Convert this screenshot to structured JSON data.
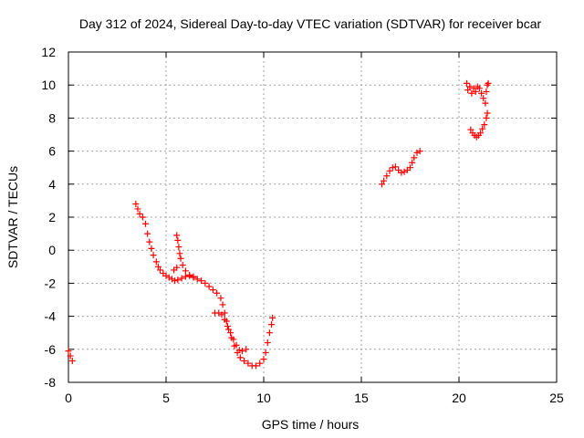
{
  "chart_data": {
    "type": "scatter",
    "title": "Day 312 of 2024, Sidereal Day-to-day VTEC variation (SDTVAR) for receiver bcar",
    "xlabel": "GPS time / hours",
    "ylabel": "SDTVAR / TECUs",
    "xlim": [
      0,
      25
    ],
    "ylim": [
      -8,
      12
    ],
    "xticks": [
      0,
      5,
      10,
      15,
      20,
      25
    ],
    "yticks": [
      -8,
      -6,
      -4,
      -2,
      0,
      2,
      4,
      6,
      8,
      10,
      12
    ],
    "grid": true,
    "marker": "+",
    "color": "#ff0000",
    "series": [
      {
        "name": "SDTVAR",
        "segments": [
          [
            [
              0.0,
              -6.1
            ],
            [
              0.1,
              -6.4
            ],
            [
              0.2,
              -6.7
            ]
          ],
          [
            [
              3.45,
              2.8
            ],
            [
              3.55,
              2.5
            ],
            [
              3.65,
              2.2
            ],
            [
              3.8,
              2.0
            ],
            [
              3.95,
              1.6
            ],
            [
              4.05,
              1.0
            ],
            [
              4.15,
              0.5
            ],
            [
              4.25,
              0.1
            ],
            [
              4.35,
              -0.3
            ],
            [
              4.5,
              -0.7
            ],
            [
              4.6,
              -1.0
            ],
            [
              4.7,
              -1.2
            ],
            [
              4.85,
              -1.4
            ],
            [
              5.0,
              -1.55
            ],
            [
              5.15,
              -1.65
            ],
            [
              5.3,
              -1.75
            ],
            [
              5.45,
              -1.85
            ],
            [
              5.6,
              -1.8
            ],
            [
              5.8,
              -1.7
            ],
            [
              6.0,
              -1.6
            ],
            [
              6.2,
              -1.55
            ],
            [
              6.4,
              -1.65
            ],
            [
              6.6,
              -1.75
            ],
            [
              6.8,
              -1.85
            ],
            [
              7.0,
              -2.0
            ],
            [
              7.2,
              -2.2
            ],
            [
              7.4,
              -2.4
            ],
            [
              7.6,
              -2.6
            ],
            [
              7.8,
              -2.9
            ],
            [
              7.9,
              -3.3
            ],
            [
              8.0,
              -3.8
            ],
            [
              8.1,
              -4.3
            ],
            [
              8.2,
              -4.8
            ],
            [
              8.35,
              -5.3
            ],
            [
              8.5,
              -5.8
            ],
            [
              8.65,
              -6.2
            ],
            [
              8.8,
              -6.5
            ],
            [
              9.0,
              -6.7
            ],
            [
              9.2,
              -6.85
            ],
            [
              9.4,
              -7.0
            ],
            [
              9.6,
              -7.0
            ],
            [
              9.8,
              -6.85
            ],
            [
              10.0,
              -6.6
            ],
            [
              10.1,
              -6.2
            ],
            [
              10.2,
              -5.6
            ],
            [
              10.3,
              -5.0
            ],
            [
              10.4,
              -4.5
            ],
            [
              10.45,
              -4.1
            ]
          ],
          [
            [
              5.55,
              0.9
            ],
            [
              5.6,
              0.6
            ],
            [
              5.65,
              0.2
            ],
            [
              5.7,
              -0.2
            ],
            [
              5.75,
              -0.5
            ],
            [
              5.85,
              -0.9
            ],
            [
              6.0,
              -1.25
            ],
            [
              6.2,
              -1.5
            ],
            [
              6.4,
              -1.6
            ]
          ],
          [
            [
              5.4,
              -1.2
            ],
            [
              5.55,
              -1.05
            ]
          ],
          [
            [
              7.5,
              -3.8
            ],
            [
              7.7,
              -3.8
            ],
            [
              7.85,
              -3.9
            ],
            [
              8.0,
              -4.2
            ],
            [
              8.15,
              -4.6
            ],
            [
              8.3,
              -5.0
            ],
            [
              8.45,
              -5.4
            ],
            [
              8.6,
              -5.75
            ],
            [
              8.75,
              -6.05
            ],
            [
              8.9,
              -6.1
            ],
            [
              9.1,
              -6.0
            ]
          ],
          [
            [
              16.05,
              4.0
            ],
            [
              16.15,
              4.2
            ],
            [
              16.3,
              4.5
            ],
            [
              16.45,
              4.8
            ],
            [
              16.6,
              5.0
            ],
            [
              16.75,
              5.05
            ],
            [
              16.9,
              4.85
            ],
            [
              17.05,
              4.7
            ],
            [
              17.2,
              4.75
            ],
            [
              17.35,
              4.85
            ],
            [
              17.5,
              5.0
            ],
            [
              17.6,
              5.3
            ],
            [
              17.7,
              5.6
            ],
            [
              17.85,
              5.9
            ],
            [
              18.0,
              6.0
            ]
          ],
          [
            [
              20.4,
              10.1
            ],
            [
              20.45,
              9.7
            ],
            [
              20.55,
              9.9
            ],
            [
              20.65,
              9.5
            ],
            [
              20.75,
              9.8
            ],
            [
              20.85,
              9.6
            ],
            [
              20.95,
              9.9
            ],
            [
              21.05,
              9.8
            ],
            [
              21.15,
              9.5
            ],
            [
              21.25,
              9.2
            ],
            [
              21.35,
              8.9
            ],
            [
              21.4,
              9.6
            ],
            [
              21.45,
              10.0
            ],
            [
              21.5,
              10.1
            ]
          ],
          [
            [
              20.6,
              7.3
            ],
            [
              20.7,
              7.1
            ],
            [
              20.8,
              6.95
            ],
            [
              20.9,
              6.85
            ],
            [
              21.0,
              6.95
            ],
            [
              21.1,
              7.1
            ],
            [
              21.2,
              7.35
            ],
            [
              21.3,
              7.6
            ],
            [
              21.4,
              8.0
            ],
            [
              21.45,
              8.3
            ]
          ]
        ]
      }
    ]
  }
}
